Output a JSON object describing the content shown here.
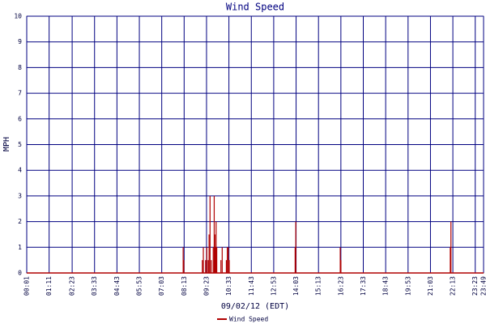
{
  "chart_data": {
    "type": "bar",
    "title": "Wind Speed",
    "x_label": "09/02/12 (EDT)",
    "y_label": "MPH",
    "x": [
      "08:10",
      "08:12",
      "09:10",
      "09:13",
      "09:20",
      "09:24",
      "09:28",
      "09:31",
      "09:34",
      "09:38",
      "09:44",
      "09:47",
      "09:49",
      "09:51",
      "09:53",
      "09:55",
      "10:08",
      "10:12",
      "10:25",
      "10:28",
      "10:31",
      "10:34",
      "14:00",
      "14:02",
      "16:21",
      "16:23",
      "22:05",
      "22:07"
    ],
    "series": [
      {
        "name": "Wind Speed",
        "color": "#b00000",
        "values": [
          1.0,
          0.5,
          0.5,
          1.0,
          0.5,
          1.0,
          0.5,
          1.5,
          3.0,
          0.5,
          1.0,
          3.0,
          1.5,
          1.0,
          2.0,
          1.0,
          0.5,
          1.0,
          0.5,
          1.0,
          1.0,
          0.5,
          1.0,
          2.0,
          1.0,
          0.5,
          1.0,
          2.0
        ]
      }
    ],
    "xlim": [
      "00:01",
      "23:49"
    ],
    "xticks": [
      "00:01",
      "01:11",
      "02:23",
      "03:33",
      "04:43",
      "05:53",
      "07:03",
      "08:13",
      "09:23",
      "10:33",
      "11:43",
      "12:53",
      "14:03",
      "15:13",
      "16:23",
      "17:33",
      "18:43",
      "19:53",
      "21:03",
      "22:13",
      "23:23",
      "23:49"
    ],
    "ylim": [
      0,
      10
    ],
    "yticks": [
      0,
      1,
      2,
      3,
      4,
      5,
      6,
      7,
      8,
      9,
      10
    ],
    "grid": true,
    "grid_color": "#000080",
    "legend": "bottom"
  }
}
